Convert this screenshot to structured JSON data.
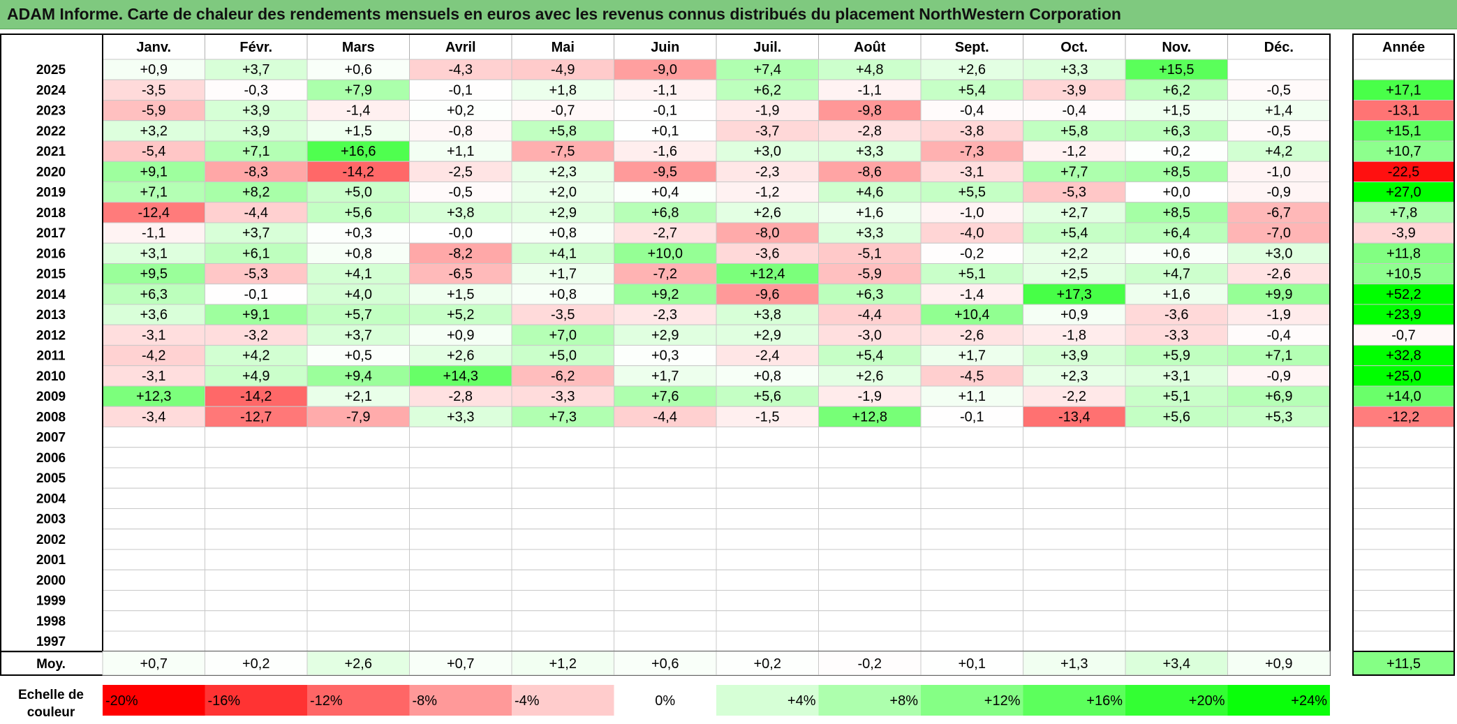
{
  "title": "ADAM Informe. Carte de chaleur des rendements mensuels en euros avec les revenus connus distribués du placement NorthWestern Corporation",
  "chart_data": {
    "type": "heatmap",
    "title": "ADAM Informe. Carte de chaleur des rendements mensuels en euros avec les revenus connus distribués du placement NorthWestern Corporation",
    "columns": [
      "Janv.",
      "Févr.",
      "Mars",
      "Avril",
      "Mai",
      "Juin",
      "Juil.",
      "Août",
      "Sept.",
      "Oct.",
      "Nov.",
      "Déc."
    ],
    "annual_header": "Année",
    "rows": [
      {
        "year": "2025",
        "values": [
          "+0,9",
          "+3,7",
          "+0,6",
          "-4,3",
          "-4,9",
          "-9,0",
          "+7,4",
          "+4,8",
          "+2,6",
          "+3,3",
          "+15,5",
          ""
        ],
        "annual": ""
      },
      {
        "year": "2024",
        "values": [
          "-3,5",
          "-0,3",
          "+7,9",
          "-0,1",
          "+1,8",
          "-1,1",
          "+6,2",
          "-1,1",
          "+5,4",
          "-3,9",
          "+6,2",
          "-0,5"
        ],
        "annual": "+17,1"
      },
      {
        "year": "2023",
        "values": [
          "-5,9",
          "+3,9",
          "-1,4",
          "+0,2",
          "-0,7",
          "-0,1",
          "-1,9",
          "-9,8",
          "-0,4",
          "-0,4",
          "+1,5",
          "+1,4"
        ],
        "annual": "-13,1"
      },
      {
        "year": "2022",
        "values": [
          "+3,2",
          "+3,9",
          "+1,5",
          "-0,8",
          "+5,8",
          "+0,1",
          "-3,7",
          "-2,8",
          "-3,8",
          "+5,8",
          "+6,3",
          "-0,5"
        ],
        "annual": "+15,1"
      },
      {
        "year": "2021",
        "values": [
          "-5,4",
          "+7,1",
          "+16,6",
          "+1,1",
          "-7,5",
          "-1,6",
          "+3,0",
          "+3,3",
          "-7,3",
          "-1,2",
          "+0,2",
          "+4,2"
        ],
        "annual": "+10,7"
      },
      {
        "year": "2020",
        "values": [
          "+9,1",
          "-8,3",
          "-14,2",
          "-2,5",
          "+2,3",
          "-9,5",
          "-2,3",
          "-8,6",
          "-3,1",
          "+7,7",
          "+8,5",
          "-1,0"
        ],
        "annual": "-22,5"
      },
      {
        "year": "2019",
        "values": [
          "+7,1",
          "+8,2",
          "+5,0",
          "-0,5",
          "+2,0",
          "+0,4",
          "-1,2",
          "+4,6",
          "+5,5",
          "-5,3",
          "+0,0",
          "-0,9"
        ],
        "annual": "+27,0"
      },
      {
        "year": "2018",
        "values": [
          "-12,4",
          "-4,4",
          "+5,6",
          "+3,8",
          "+2,9",
          "+6,8",
          "+2,6",
          "+1,6",
          "-1,0",
          "+2,7",
          "+8,5",
          "-6,7"
        ],
        "annual": "+7,8"
      },
      {
        "year": "2017",
        "values": [
          "-1,1",
          "+3,7",
          "+0,3",
          "-0,0",
          "+0,8",
          "-2,7",
          "-8,0",
          "+3,3",
          "-4,0",
          "+5,4",
          "+6,4",
          "-7,0"
        ],
        "annual": "-3,9"
      },
      {
        "year": "2016",
        "values": [
          "+3,1",
          "+6,1",
          "+0,8",
          "-8,2",
          "+4,1",
          "+10,0",
          "-3,6",
          "-5,1",
          "-0,2",
          "+2,2",
          "+0,6",
          "+3,0"
        ],
        "annual": "+11,8"
      },
      {
        "year": "2015",
        "values": [
          "+9,5",
          "-5,3",
          "+4,1",
          "-6,5",
          "+1,7",
          "-7,2",
          "+12,4",
          "-5,9",
          "+5,1",
          "+2,5",
          "+4,7",
          "-2,6"
        ],
        "annual": "+10,5"
      },
      {
        "year": "2014",
        "values": [
          "+6,3",
          "-0,1",
          "+4,0",
          "+1,5",
          "+0,8",
          "+9,2",
          "-9,6",
          "+6,3",
          "-1,4",
          "+17,3",
          "+1,6",
          "+9,9"
        ],
        "annual": "+52,2"
      },
      {
        "year": "2013",
        "values": [
          "+3,6",
          "+9,1",
          "+5,7",
          "+5,2",
          "-3,5",
          "-2,3",
          "+3,8",
          "-4,4",
          "+10,4",
          "+0,9",
          "-3,6",
          "-1,9"
        ],
        "annual": "+23,9"
      },
      {
        "year": "2012",
        "values": [
          "-3,1",
          "-3,2",
          "+3,7",
          "+0,9",
          "+7,0",
          "+2,9",
          "+2,9",
          "-3,0",
          "-2,6",
          "-1,8",
          "-3,3",
          "-0,4"
        ],
        "annual": "-0,7"
      },
      {
        "year": "2011",
        "values": [
          "-4,2",
          "+4,2",
          "+0,5",
          "+2,6",
          "+5,0",
          "+0,3",
          "-2,4",
          "+5,4",
          "+1,7",
          "+3,9",
          "+5,9",
          "+7,1"
        ],
        "annual": "+32,8"
      },
      {
        "year": "2010",
        "values": [
          "-3,1",
          "+4,9",
          "+9,4",
          "+14,3",
          "-6,2",
          "+1,7",
          "+0,8",
          "+2,6",
          "-4,5",
          "+2,3",
          "+3,1",
          "-0,9"
        ],
        "annual": "+25,0"
      },
      {
        "year": "2009",
        "values": [
          "+12,3",
          "-14,2",
          "+2,1",
          "-2,8",
          "-3,3",
          "+7,6",
          "+5,6",
          "-1,9",
          "+1,1",
          "-2,2",
          "+5,1",
          "+6,9"
        ],
        "annual": "+14,0"
      },
      {
        "year": "2008",
        "values": [
          "-3,4",
          "-12,7",
          "-7,9",
          "+3,3",
          "+7,3",
          "-4,4",
          "-1,5",
          "+12,8",
          "-0,1",
          "-13,4",
          "+5,6",
          "+5,3"
        ],
        "annual": "-12,2"
      },
      {
        "year": "2007",
        "values": [
          "",
          "",
          "",
          "",
          "",
          "",
          "",
          "",
          "",
          "",
          "",
          ""
        ],
        "annual": ""
      },
      {
        "year": "2006",
        "values": [
          "",
          "",
          "",
          "",
          "",
          "",
          "",
          "",
          "",
          "",
          "",
          ""
        ],
        "annual": ""
      },
      {
        "year": "2005",
        "values": [
          "",
          "",
          "",
          "",
          "",
          "",
          "",
          "",
          "",
          "",
          "",
          ""
        ],
        "annual": ""
      },
      {
        "year": "2004",
        "values": [
          "",
          "",
          "",
          "",
          "",
          "",
          "",
          "",
          "",
          "",
          "",
          ""
        ],
        "annual": ""
      },
      {
        "year": "2003",
        "values": [
          "",
          "",
          "",
          "",
          "",
          "",
          "",
          "",
          "",
          "",
          "",
          ""
        ],
        "annual": ""
      },
      {
        "year": "2002",
        "values": [
          "",
          "",
          "",
          "",
          "",
          "",
          "",
          "",
          "",
          "",
          "",
          ""
        ],
        "annual": ""
      },
      {
        "year": "2001",
        "values": [
          "",
          "",
          "",
          "",
          "",
          "",
          "",
          "",
          "",
          "",
          "",
          ""
        ],
        "annual": ""
      },
      {
        "year": "2000",
        "values": [
          "",
          "",
          "",
          "",
          "",
          "",
          "",
          "",
          "",
          "",
          "",
          ""
        ],
        "annual": ""
      },
      {
        "year": "1999",
        "values": [
          "",
          "",
          "",
          "",
          "",
          "",
          "",
          "",
          "",
          "",
          "",
          ""
        ],
        "annual": ""
      },
      {
        "year": "1998",
        "values": [
          "",
          "",
          "",
          "",
          "",
          "",
          "",
          "",
          "",
          "",
          "",
          ""
        ],
        "annual": ""
      },
      {
        "year": "1997",
        "values": [
          "",
          "",
          "",
          "",
          "",
          "",
          "",
          "",
          "",
          "",
          "",
          ""
        ],
        "annual": ""
      }
    ],
    "average": {
      "label": "Moy.",
      "values": [
        "+0,7",
        "+0,2",
        "+2,6",
        "+0,7",
        "+1,2",
        "+0,6",
        "+0,2",
        "-0,2",
        "+0,1",
        "+1,3",
        "+3,4",
        "+0,9"
      ],
      "annual": "+11,5"
    },
    "color_scale": {
      "label": "Echelle de couleur",
      "stops": [
        {
          "label": "-20%",
          "value": -20,
          "color": "#ff0000"
        },
        {
          "label": "-16%",
          "value": -16,
          "color": "#ff3333"
        },
        {
          "label": "-12%",
          "value": -12,
          "color": "#ff6666"
        },
        {
          "label": "-8%",
          "value": -8,
          "color": "#ff9999"
        },
        {
          "label": "-4%",
          "value": -4,
          "color": "#ffcccc"
        },
        {
          "label": "0%",
          "value": 0,
          "color": "#ffffff"
        },
        {
          "label": "+4%",
          "value": 4,
          "color": "#d6ffd6"
        },
        {
          "label": "+8%",
          "value": 8,
          "color": "#adffad"
        },
        {
          "label": "+12%",
          "value": 12,
          "color": "#85ff85"
        },
        {
          "label": "+16%",
          "value": 16,
          "color": "#5cff5c"
        },
        {
          "label": "+20%",
          "value": 20,
          "color": "#33ff33"
        },
        {
          "label": "+24%",
          "value": 24,
          "color": "#0aff0a"
        }
      ]
    },
    "annual_color_range": [
      -24,
      24
    ]
  }
}
